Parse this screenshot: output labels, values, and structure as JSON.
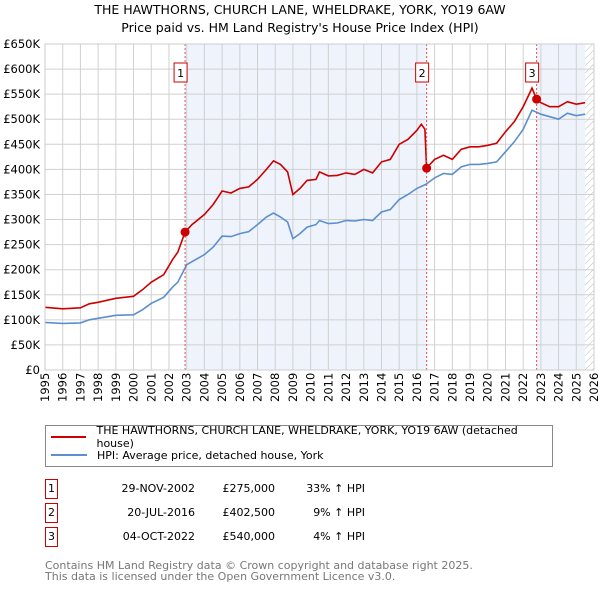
{
  "chart_data": {
    "type": "line",
    "title": "THE HAWTHORNS, CHURCH LANE, WHELDRAKE, YORK, YO19 6AW",
    "subtitle": "Price paid vs. HM Land Registry's House Price Index (HPI)",
    "xlim": [
      1995,
      2026
    ],
    "ylim": [
      0,
      650000
    ],
    "x_ticks": [
      "1995",
      "1996",
      "1997",
      "1998",
      "1999",
      "2000",
      "2001",
      "2002",
      "2003",
      "2004",
      "2005",
      "2006",
      "2007",
      "2008",
      "2009",
      "2010",
      "2011",
      "2012",
      "2013",
      "2014",
      "2015",
      "2016",
      "2017",
      "2018",
      "2019",
      "2020",
      "2021",
      "2022",
      "2023",
      "2024",
      "2025",
      "2026"
    ],
    "y_ticks": [
      {
        "v": 0,
        "label": "£0"
      },
      {
        "v": 50000,
        "label": "£50K"
      },
      {
        "v": 100000,
        "label": "£100K"
      },
      {
        "v": 150000,
        "label": "£150K"
      },
      {
        "v": 200000,
        "label": "£200K"
      },
      {
        "v": 250000,
        "label": "£250K"
      },
      {
        "v": 300000,
        "label": "£300K"
      },
      {
        "v": 350000,
        "label": "£350K"
      },
      {
        "v": 400000,
        "label": "£400K"
      },
      {
        "v": 450000,
        "label": "£450K"
      },
      {
        "v": 500000,
        "label": "£500K"
      },
      {
        "v": 550000,
        "label": "£550K"
      },
      {
        "v": 600000,
        "label": "£600K"
      },
      {
        "v": 650000,
        "label": "£650K"
      }
    ],
    "grid": true,
    "series": [
      {
        "name": "THE HAWTHORNS, CHURCH LANE, WHELDRAKE, YORK, YO19 6AW (detached house)",
        "color": "#cc0000",
        "x": [
          1995,
          1996,
          1997,
          1997.5,
          1998,
          1999,
          2000,
          2000.5,
          2001,
          2001.7,
          2002.2,
          2002.5,
          2002.91,
          2003.3,
          2004,
          2004.5,
          2005,
          2005.5,
          2006,
          2006.5,
          2007,
          2007.5,
          2007.9,
          2008.3,
          2008.7,
          2009,
          2009.4,
          2009.8,
          2010.3,
          2010.5,
          2011,
          2011.5,
          2012,
          2012.5,
          2013,
          2013.5,
          2014,
          2014.5,
          2015,
          2015.5,
          2016,
          2016.25,
          2016.45,
          2016.55,
          2017,
          2017.5,
          2018,
          2018.5,
          2019,
          2019.5,
          2020,
          2020.5,
          2021,
          2021.5,
          2022,
          2022.5,
          2022.76,
          2023,
          2023.5,
          2024,
          2024.5,
          2025,
          2025.5
        ],
        "y": [
          125000,
          122000,
          124000,
          132000,
          135000,
          143000,
          147000,
          160000,
          175000,
          190000,
          220000,
          235000,
          275000,
          290000,
          310000,
          330000,
          357000,
          353000,
          362000,
          365000,
          380000,
          400000,
          417000,
          410000,
          395000,
          350000,
          362000,
          378000,
          380000,
          395000,
          387000,
          388000,
          393000,
          390000,
          400000,
          393000,
          415000,
          420000,
          450000,
          460000,
          478000,
          490000,
          480000,
          402500,
          420000,
          428000,
          420000,
          440000,
          445000,
          445000,
          448000,
          452000,
          475000,
          495000,
          525000,
          562000,
          540000,
          533000,
          525000,
          525000,
          535000,
          530000,
          533000
        ]
      },
      {
        "name": "HPI: Average price, detached house, York",
        "color": "#5b8fd0",
        "x": [
          1995,
          1996,
          1997,
          1997.5,
          1998,
          1999,
          2000,
          2000.5,
          2001,
          2001.7,
          2002.2,
          2002.5,
          2003,
          2003.5,
          2004,
          2004.5,
          2005,
          2005.5,
          2006,
          2006.5,
          2007,
          2007.5,
          2007.9,
          2008.3,
          2008.7,
          2009,
          2009.4,
          2009.8,
          2010.3,
          2010.5,
          2011,
          2011.5,
          2012,
          2012.5,
          2013,
          2013.5,
          2014,
          2014.5,
          2015,
          2015.5,
          2016,
          2016.5,
          2017,
          2017.5,
          2018,
          2018.5,
          2019,
          2019.5,
          2020,
          2020.5,
          2021,
          2021.5,
          2022,
          2022.5,
          2023,
          2023.5,
          2024,
          2024.5,
          2025,
          2025.5
        ],
        "y": [
          95000,
          93000,
          94000,
          100000,
          103000,
          109000,
          110000,
          120000,
          133000,
          145000,
          165000,
          175000,
          210000,
          220000,
          230000,
          245000,
          267000,
          266000,
          272000,
          276000,
          290000,
          305000,
          313000,
          305000,
          295000,
          262000,
          272000,
          285000,
          290000,
          298000,
          292000,
          293000,
          298000,
          297000,
          300000,
          298000,
          315000,
          320000,
          340000,
          350000,
          362000,
          370000,
          383000,
          392000,
          390000,
          405000,
          410000,
          410000,
          412000,
          415000,
          435000,
          455000,
          480000,
          518000,
          510000,
          505000,
          500000,
          512000,
          507000,
          510000
        ]
      }
    ],
    "sales": [
      {
        "num": "1",
        "x": 2002.91,
        "price": 275000,
        "date": "29-NOV-2002",
        "price_label": "£275,000",
        "hpi": "33% ↑ HPI"
      },
      {
        "num": "2",
        "x": 2016.55,
        "price": 402500,
        "date": "20-JUL-2016",
        "price_label": "£402,500",
        "hpi": "9% ↑ HPI"
      },
      {
        "num": "3",
        "x": 2022.76,
        "price": 540000,
        "date": "04-OCT-2022",
        "price_label": "£540,000",
        "hpi": "4% ↑ HPI"
      }
    ],
    "legend_placement": "below"
  },
  "footer": {
    "line1": "Contains HM Land Registry data © Crown copyright and database right 2025.",
    "line2": "This data is licensed under the Open Government Licence v3.0."
  }
}
